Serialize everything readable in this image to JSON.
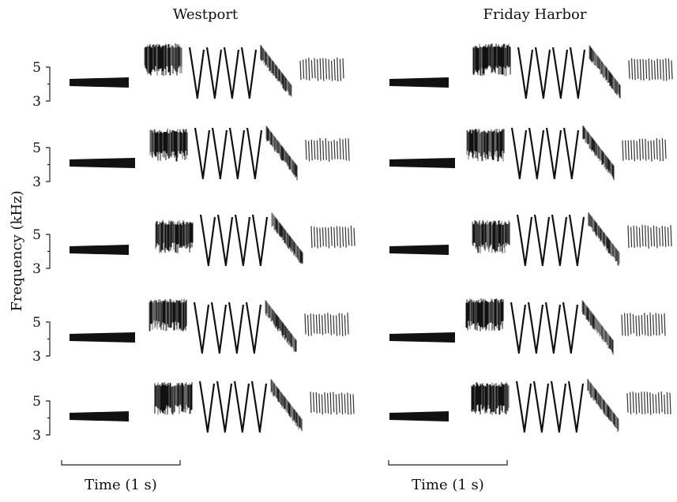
{
  "figure": {
    "y_axis_label": "Frequency (kHz)",
    "row_ticks": [
      "5",
      "3"
    ],
    "columns": [
      {
        "title": "Westport",
        "time_label": "Time (1 s)"
      },
      {
        "title": "Friday Harbor",
        "time_label": "Time (1 s)"
      }
    ]
  }
}
